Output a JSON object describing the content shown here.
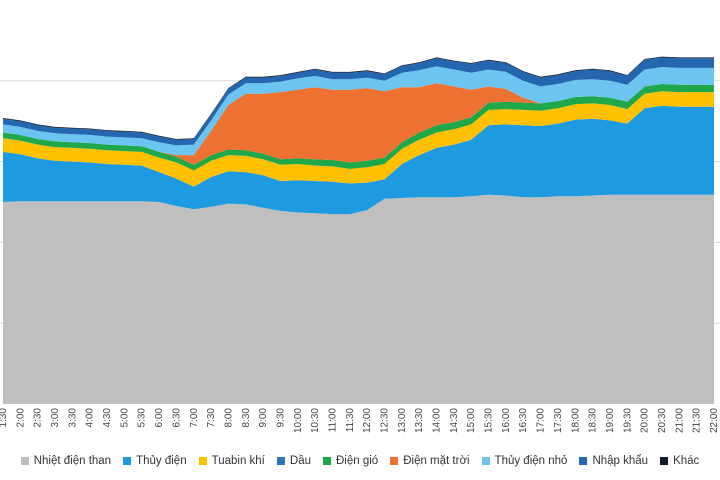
{
  "chart_data": {
    "type": "area",
    "stacked": true,
    "x": [
      "1:30",
      "2:00",
      "2:30",
      "3:00",
      "3:30",
      "4:00",
      "4:30",
      "5:00",
      "5:30",
      "6:00",
      "6:30",
      "7:00",
      "7:30",
      "8:00",
      "8:30",
      "9:00",
      "9:30",
      "10:00",
      "10:30",
      "11:00",
      "11:30",
      "12:00",
      "12:30",
      "13:00",
      "13:30",
      "14:00",
      "14:30",
      "15:00",
      "15:30",
      "16:00",
      "16:30",
      "17:00",
      "17:30",
      "18:00",
      "18:30",
      "19:00",
      "19:30",
      "20:00",
      "20:30",
      "21:00",
      "21:30",
      "22:00"
    ],
    "grid": "horizontal",
    "legend_position": "bottom",
    "series": [
      {
        "name": "Nhiệt điện than",
        "color": "#BFBFBF",
        "values": [
          250,
          251,
          251,
          251,
          251,
          251,
          251,
          251,
          251,
          250,
          245,
          241,
          244,
          248,
          247,
          243,
          239,
          237,
          236,
          235,
          235,
          240,
          254,
          255,
          256,
          256,
          256,
          257,
          259,
          258,
          256,
          256,
          257,
          257,
          258,
          259,
          259,
          259,
          259,
          259,
          259,
          259
        ]
      },
      {
        "name": "Thủy điện",
        "color": "#1E9BE0",
        "values": [
          62,
          58,
          53,
          50,
          49,
          48,
          46,
          45,
          44,
          37,
          34,
          28,
          37,
          40,
          40,
          40,
          37,
          40,
          40,
          40,
          38,
          34,
          24,
          42,
          52,
          61,
          65,
          70,
          86,
          88,
          89,
          88,
          90,
          95,
          95,
          92,
          88,
          107,
          110,
          109,
          109,
          109
        ]
      },
      {
        "name": "Tuabin khí",
        "color": "#FFC000",
        "values": [
          17,
          17,
          17,
          17,
          17,
          17,
          17,
          17,
          17,
          18,
          20,
          20,
          20,
          20,
          20,
          20,
          20,
          20,
          19,
          19,
          18,
          19,
          19,
          19,
          19,
          19,
          19,
          19,
          19,
          19,
          19,
          19,
          19,
          19,
          19,
          19,
          18,
          18,
          18,
          18,
          18,
          18
        ]
      },
      {
        "name": "Dầu",
        "color": "#2E75B6",
        "values": [
          0,
          0,
          0,
          0,
          0,
          0,
          0,
          0,
          0,
          0,
          0,
          0,
          0,
          0,
          0,
          0,
          0,
          0,
          0,
          0,
          0,
          0,
          0,
          0,
          0,
          0,
          0,
          0,
          0,
          0,
          0,
          0,
          0,
          0,
          0,
          0,
          0,
          0,
          0,
          0,
          0,
          0
        ]
      },
      {
        "name": "Điện gió",
        "color": "#1FA84A",
        "values": [
          7,
          7,
          7,
          7,
          7,
          7,
          7,
          7,
          7,
          7,
          7,
          7,
          7,
          7,
          7,
          7,
          7,
          7,
          8,
          8,
          8,
          8,
          8,
          8,
          9,
          9,
          9,
          9,
          9,
          9,
          9,
          9,
          9,
          9,
          9,
          9,
          9,
          9,
          9,
          9,
          9,
          9
        ]
      },
      {
        "name": "Điện mặt trời",
        "color": "#ED7131",
        "values": [
          0,
          0,
          0,
          0,
          0,
          0,
          0,
          0,
          0,
          0,
          2,
          12,
          30,
          55,
          70,
          74,
          83,
          85,
          89,
          87,
          90,
          90,
          82,
          68,
          56,
          52,
          44,
          34,
          20,
          16,
          6,
          0,
          0,
          0,
          0,
          0,
          0,
          0,
          0,
          0,
          0,
          0
        ]
      },
      {
        "name": "Thủy điện nhỏ",
        "color": "#6CC5F0",
        "values": [
          10,
          10,
          10,
          10,
          10,
          10,
          10,
          10,
          10,
          12,
          12,
          13,
          13,
          13,
          13,
          13,
          13,
          14,
          14,
          13,
          13,
          13,
          13,
          18,
          21,
          21,
          21,
          21,
          21,
          21,
          21,
          21,
          21,
          21,
          21,
          21,
          21,
          21,
          21,
          21,
          21,
          21
        ]
      },
      {
        "name": "Nhập khẩu",
        "color": "#2466B0",
        "values": [
          7,
          7,
          7,
          7,
          7,
          7,
          7,
          7,
          7,
          7,
          7,
          7,
          7,
          7,
          7,
          7,
          7,
          7,
          8,
          8,
          8,
          8,
          8,
          8,
          9,
          10,
          10,
          11,
          11,
          11,
          11,
          11,
          11,
          11,
          12,
          12,
          11,
          12,
          12,
          12,
          12,
          12
        ]
      },
      {
        "name": "Khác",
        "color": "#111B2E",
        "values": [
          1,
          1,
          1,
          1,
          1,
          1,
          1,
          1,
          1,
          1,
          1,
          1,
          1,
          1,
          1,
          1,
          1,
          1,
          1,
          1,
          1,
          1,
          1,
          1,
          1,
          1,
          1,
          1,
          1,
          1,
          1,
          1,
          1,
          1,
          1,
          1,
          1,
          1,
          1,
          1,
          1,
          1
        ]
      }
    ],
    "title": "",
    "xlabel": "",
    "ylabel": "",
    "ylim": [
      0,
      500
    ]
  }
}
